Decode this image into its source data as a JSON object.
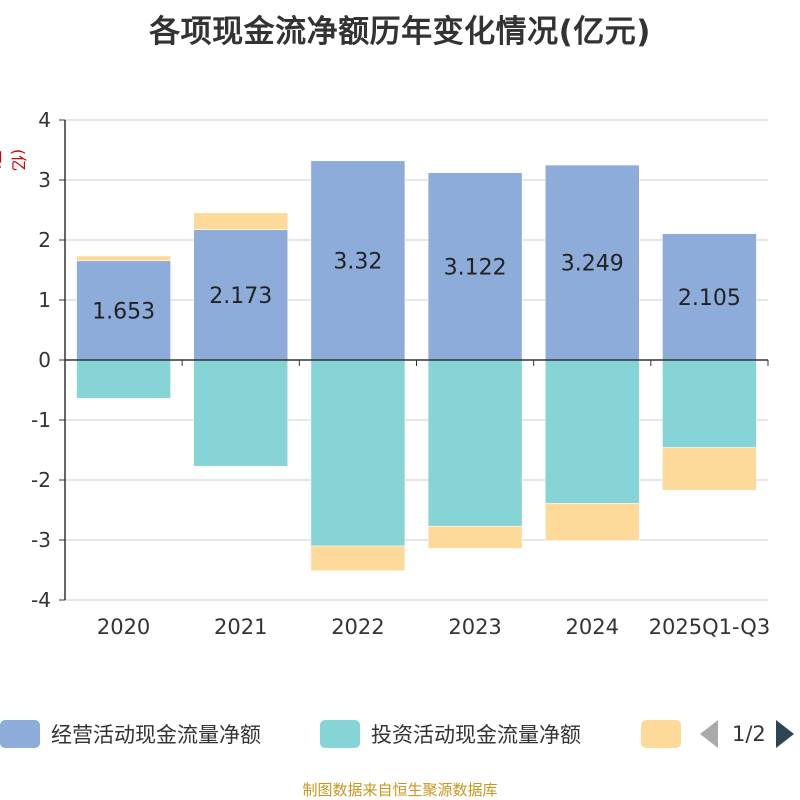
{
  "title": "各项现金流净额历年变化情况(亿元)",
  "unit_label": "(亿元)",
  "source": "制图数据来自恒生聚源数据库",
  "pager": {
    "text": "1/2"
  },
  "legend": [
    {
      "name": "经营活动现金流量净额",
      "color": "#8eacd9"
    },
    {
      "name": "投资活动现金流量净额",
      "color": "#86d4d6"
    },
    {
      "name": "",
      "color": "#fdd99a"
    }
  ],
  "chart_data": {
    "type": "bar",
    "stacked": true,
    "title": "各项现金流净额历年变化情况(亿元)",
    "ylabel": "(亿元)",
    "ylim": [
      -4,
      4
    ],
    "yticks": [
      "-4",
      "-3",
      "-2",
      "-1",
      "0",
      "1",
      "2",
      "3",
      "4"
    ],
    "ytick_values": [
      -4,
      -3,
      -2,
      -1,
      0,
      1,
      2,
      3,
      4
    ],
    "categories": [
      "2020",
      "2021",
      "2022",
      "2023",
      "2024",
      "2025Q1-Q3"
    ],
    "series": [
      {
        "name": "经营活动现金流量净额",
        "color": "#8eacd9",
        "values": [
          1.653,
          2.173,
          3.32,
          3.122,
          3.249,
          2.105
        ],
        "labels": [
          "1.653",
          "2.173",
          "3.32",
          "3.122",
          "3.249",
          "2.105"
        ]
      },
      {
        "name": "投资活动现金流量净额",
        "color": "#86d4d6",
        "values": [
          -0.64,
          -1.77,
          -3.1,
          -2.77,
          -2.39,
          -1.46
        ]
      },
      {
        "name": "",
        "color": "#fdd99a",
        "values": [
          0.08,
          0.28,
          -0.41,
          -0.37,
          -0.62,
          -0.71
        ]
      }
    ]
  }
}
